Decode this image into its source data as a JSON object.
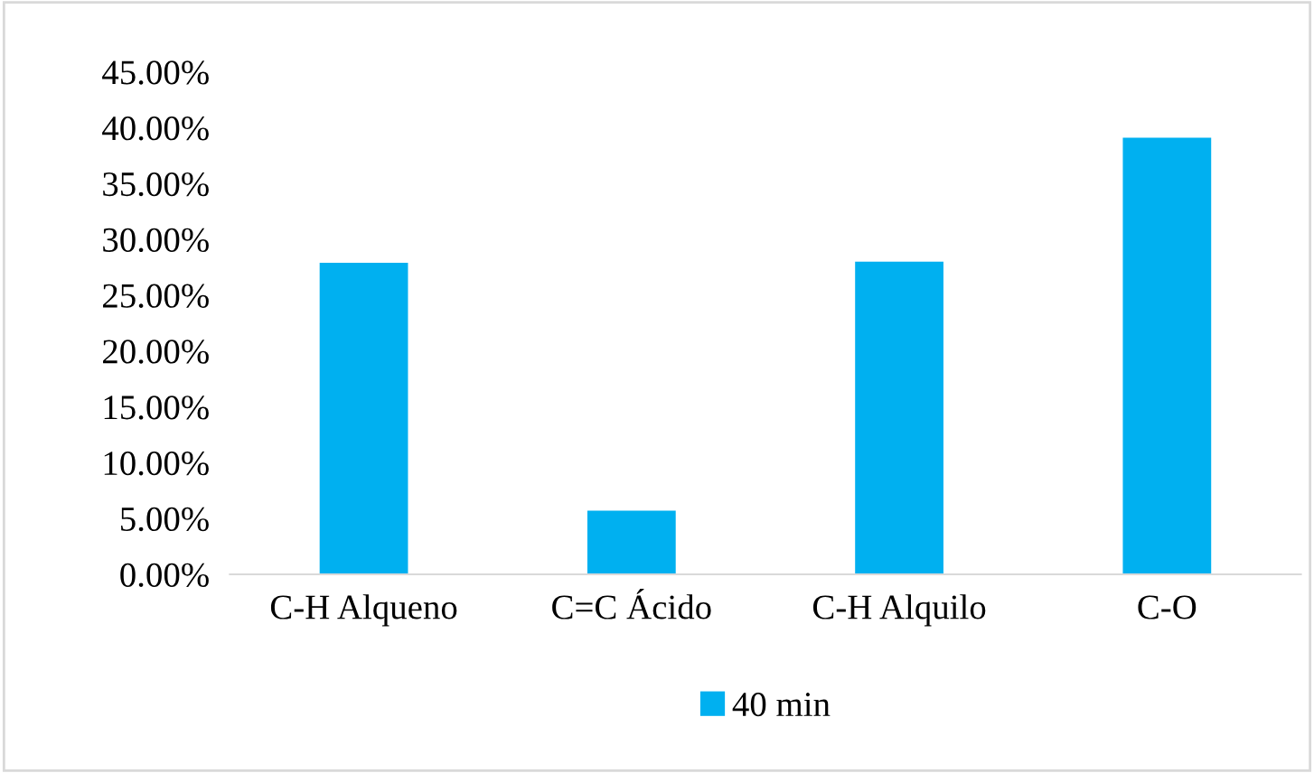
{
  "chart_data": {
    "type": "bar",
    "categories": [
      "C-H Alqueno",
      "C=C Ácido",
      "C-H Alquilo",
      "C-O"
    ],
    "series": [
      {
        "name": "40 min",
        "color": "#00b0f0",
        "values": [
          27.9,
          5.7,
          28.0,
          39.1
        ]
      }
    ],
    "ylim": [
      0,
      45
    ],
    "yticks": [
      {
        "value": 0,
        "label": "0.00%"
      },
      {
        "value": 5,
        "label": "5.00%"
      },
      {
        "value": 10,
        "label": "10.00%"
      },
      {
        "value": 15,
        "label": "15.00%"
      },
      {
        "value": 20,
        "label": "20.00%"
      },
      {
        "value": 25,
        "label": "25.00%"
      },
      {
        "value": 30,
        "label": "30.00%"
      },
      {
        "value": 35,
        "label": "35.00%"
      },
      {
        "value": 40,
        "label": "40.00%"
      },
      {
        "value": 45,
        "label": "45.00%"
      }
    ],
    "grid": false,
    "legend": "bottom"
  }
}
